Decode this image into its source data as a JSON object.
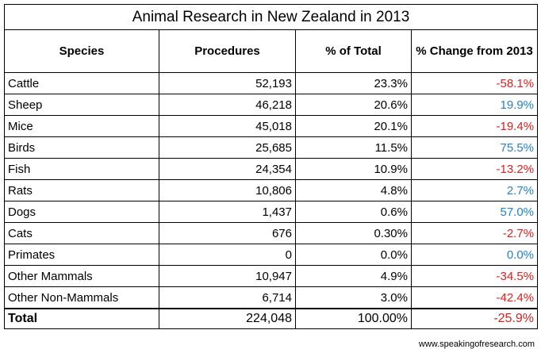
{
  "table": {
    "title": "Animal Research in New Zealand in 2013",
    "header": [
      "Species",
      "Procedures",
      "% of Total",
      "% Change from 2013"
    ],
    "rows": [
      [
        "Cattle",
        "52,193",
        "23.3%",
        "-58.1%"
      ],
      [
        "Sheep",
        "46,218",
        "20.6%",
        "19.9%"
      ],
      [
        "Mice",
        "45,018",
        "20.1%",
        "-19.4%"
      ],
      [
        "Birds",
        "25,685",
        "11.5%",
        "75.5%"
      ],
      [
        "Fish",
        "24,354",
        "10.9%",
        "-13.2%"
      ],
      [
        "Rats",
        "10,806",
        "4.8%",
        "2.7%"
      ],
      [
        "Dogs",
        "1,437",
        "0.6%",
        "57.0%"
      ],
      [
        "Cats",
        "676",
        "0.30%",
        "-2.7%"
      ],
      [
        "Primates",
        "0",
        "0.0%",
        "0.0%"
      ],
      [
        "Other Mammals",
        "10,947",
        "4.9%",
        "-34.5%"
      ],
      [
        "Other Non-Mammals",
        "6,714",
        "3.0%",
        "-42.4%"
      ]
    ],
    "total": [
      "Total",
      "224,048",
      "100.00%",
      "-25.9%"
    ]
  },
  "footer": "www.speakingofresearch.com"
}
